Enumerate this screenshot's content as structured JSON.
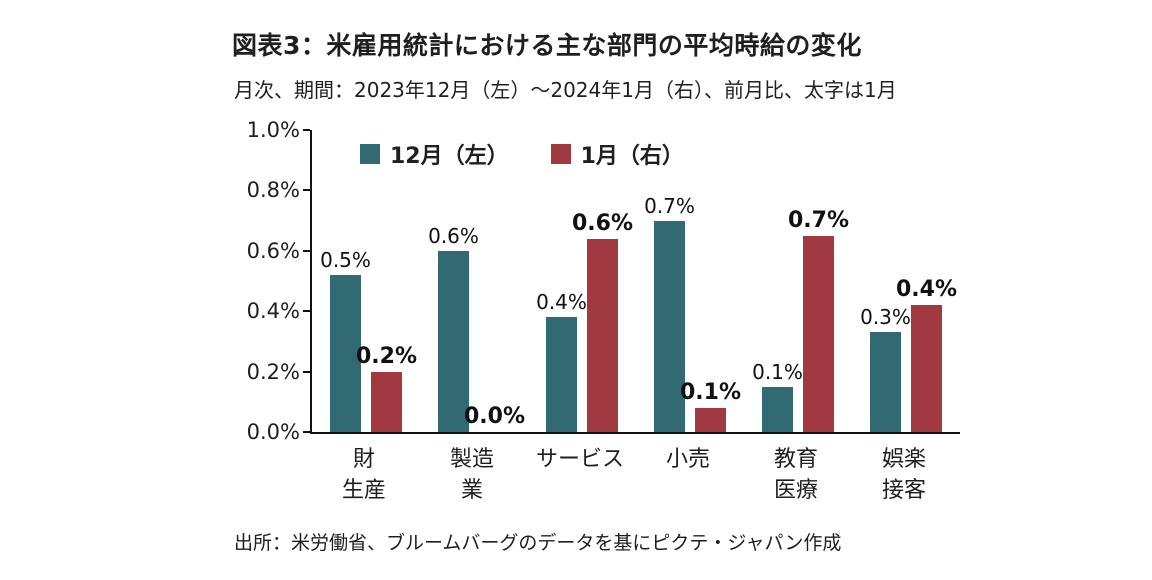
{
  "header": {
    "title": "図表3：米雇用統計における主な部門の平均時給の変化",
    "subtitle": "月次、期間：2023年12月（左）～2024年1月（右）、前月比、太字は1月"
  },
  "footer": {
    "source": "出所：米労働省、ブルームバーグのデータを基にピクテ・ジャパン作成"
  },
  "colors": {
    "december_teal": "#316A73",
    "january_red": "#A13941",
    "axis": "#111111",
    "text": "#1F1F1F"
  },
  "chart_data": {
    "type": "bar",
    "title": "図表3：米雇用統計における主な部門の平均時給の変化",
    "subtitle": "月次、期間：2023年12月（左）～2024年1月（右）、前月比、太字は1月",
    "categories": [
      "財生産",
      "製造業",
      "サービス",
      "小売",
      "教育医療",
      "娯楽接客"
    ],
    "category_lines": [
      [
        "財",
        "生産"
      ],
      [
        "製造",
        "業"
      ],
      [
        "サービス"
      ],
      [
        "小売"
      ],
      [
        "教育",
        "医療"
      ],
      [
        "娯楽",
        "接客"
      ]
    ],
    "series": [
      {
        "name": "12月（左）",
        "color": "#316A73",
        "bold_labels": false,
        "values": [
          0.52,
          0.6,
          0.38,
          0.7,
          0.15,
          0.33
        ],
        "labels": [
          "0.5%",
          "0.6%",
          "0.4%",
          "0.7%",
          "0.1%",
          "0.3%"
        ]
      },
      {
        "name": "1月（右）",
        "color": "#A13941",
        "bold_labels": true,
        "values": [
          0.2,
          0.0,
          0.64,
          0.08,
          0.65,
          0.42
        ],
        "labels": [
          "0.2%",
          "0.0%",
          "0.6%",
          "0.1%",
          "0.7%",
          "0.4%"
        ]
      }
    ],
    "ylim": [
      0,
      1.0
    ],
    "yticks": [
      {
        "value": 0.0,
        "label": "0.0%"
      },
      {
        "value": 0.2,
        "label": "0.2%"
      },
      {
        "value": 0.4,
        "label": "0.4%"
      },
      {
        "value": 0.6,
        "label": "0.6%"
      },
      {
        "value": 0.8,
        "label": "0.8%"
      },
      {
        "value": 1.0,
        "label": "1.0%"
      }
    ],
    "grid": false,
    "legend_position": "top-left-inside",
    "value_label_note": "bold labels = January (1月)"
  }
}
